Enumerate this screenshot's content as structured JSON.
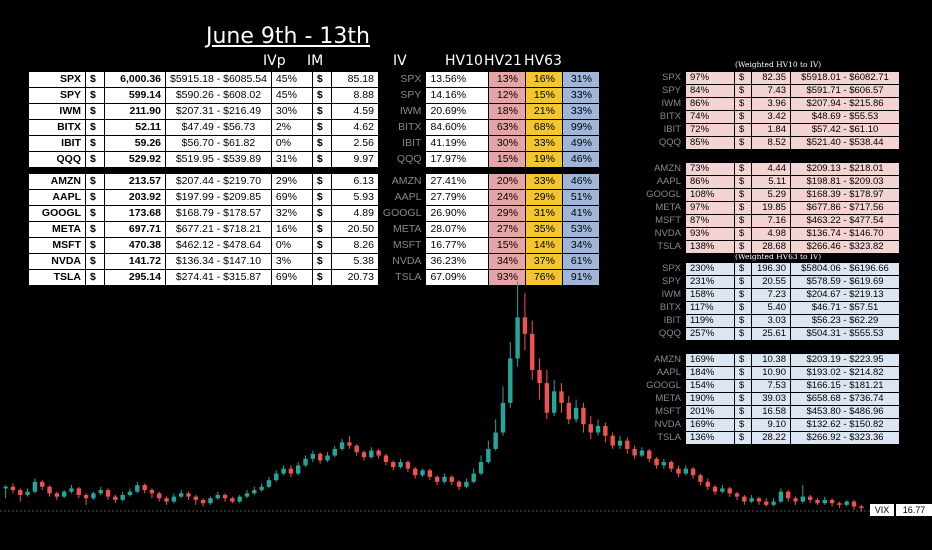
{
  "title": "June 9th - 13th",
  "headers": {
    "ivp": "IVp",
    "im": "IM",
    "iv": "IV",
    "hv10": "HV10",
    "hv21": "HV21",
    "hv63": "HV63"
  },
  "sub_top": "(Weighted HV10 to IV)",
  "sub_bot": "(Weighted HV63 to IV)",
  "dollar": "$",
  "rows": [
    {
      "t": "SPX",
      "p": "6,000.36",
      "rg": "$5915.18 - $6085.54",
      "ivp": "45%",
      "im": "85.18",
      "iv": "13.56%",
      "h10": "13%",
      "h21": "16%",
      "h63": "31%",
      "a_pct": "97%",
      "a_im": "82.35",
      "a_rg": "$5918.01 - $6082.71",
      "b_pct": "230%",
      "b_im": "196.30",
      "b_rg": "$5804.06 - $6196.66"
    },
    {
      "t": "SPY",
      "p": "599.14",
      "rg": "$590.26 - $608.02",
      "ivp": "45%",
      "im": "8.88",
      "iv": "14.16%",
      "h10": "12%",
      "h21": "15%",
      "h63": "33%",
      "a_pct": "84%",
      "a_im": "7.43",
      "a_rg": "$591.71 - $606.57",
      "b_pct": "231%",
      "b_im": "20.55",
      "b_rg": "$578.59 - $619.69"
    },
    {
      "t": "IWM",
      "p": "211.90",
      "rg": "$207.31 - $216.49",
      "ivp": "30%",
      "im": "4.59",
      "iv": "20.69%",
      "h10": "18%",
      "h21": "21%",
      "h63": "33%",
      "a_pct": "86%",
      "a_im": "3.96",
      "a_rg": "$207.94 - $215.86",
      "b_pct": "158%",
      "b_im": "7.23",
      "b_rg": "$204.67 - $219.13"
    },
    {
      "t": "BITX",
      "p": "52.11",
      "rg": "$47.49 - $56.73",
      "ivp": "2%",
      "im": "4.62",
      "iv": "84.60%",
      "h10": "63%",
      "h21": "68%",
      "h63": "99%",
      "a_pct": "74%",
      "a_im": "3.42",
      "a_rg": "$48.69 - $55.53",
      "b_pct": "117%",
      "b_im": "5.40",
      "b_rg": "$46.71 - $57.51"
    },
    {
      "t": "IBIT",
      "p": "59.26",
      "rg": "$56.70 - $61.82",
      "ivp": "0%",
      "im": "2.56",
      "iv": "41.19%",
      "h10": "30%",
      "h21": "33%",
      "h63": "49%",
      "a_pct": "72%",
      "a_im": "1.84",
      "a_rg": "$57.42 - $61.10",
      "b_pct": "119%",
      "b_im": "3.03",
      "b_rg": "$56.23 - $62.29"
    },
    {
      "t": "QQQ",
      "p": "529.92",
      "rg": "$519.95 - $539.89",
      "ivp": "31%",
      "im": "9.97",
      "iv": "17.97%",
      "h10": "15%",
      "h21": "19%",
      "h63": "46%",
      "a_pct": "85%",
      "a_im": "8.52",
      "a_rg": "$521.40 - $538.44",
      "b_pct": "257%",
      "b_im": "25.61",
      "b_rg": "$504.31 - $555.53"
    },
    {
      "t": "AMZN",
      "p": "213.57",
      "rg": "$207.44 - $219.70",
      "ivp": "29%",
      "im": "6.13",
      "iv": "27.41%",
      "h10": "20%",
      "h21": "33%",
      "h63": "46%",
      "a_pct": "73%",
      "a_im": "4.44",
      "a_rg": "$209.13 - $218.01",
      "b_pct": "169%",
      "b_im": "10.38",
      "b_rg": "$203.19 - $223.95"
    },
    {
      "t": "AAPL",
      "p": "203.92",
      "rg": "$197.99 - $209.85",
      "ivp": "69%",
      "im": "5.93",
      "iv": "27.79%",
      "h10": "24%",
      "h21": "29%",
      "h63": "51%",
      "a_pct": "86%",
      "a_im": "5.11",
      "a_rg": "$198.81 - $209.03",
      "b_pct": "184%",
      "b_im": "10.90",
      "b_rg": "$193.02 - $214.82"
    },
    {
      "t": "GOOGL",
      "p": "173.68",
      "rg": "$168.79 - $178.57",
      "ivp": "32%",
      "im": "4.89",
      "iv": "26.90%",
      "h10": "29%",
      "h21": "31%",
      "h63": "41%",
      "a_pct": "108%",
      "a_im": "5.29",
      "a_rg": "$168.39 - $178.97",
      "b_pct": "154%",
      "b_im": "7.53",
      "b_rg": "$166.15 - $181.21"
    },
    {
      "t": "META",
      "p": "697.71",
      "rg": "$677.21 - $718.21",
      "ivp": "16%",
      "im": "20.50",
      "iv": "28.07%",
      "h10": "27%",
      "h21": "35%",
      "h63": "53%",
      "a_pct": "97%",
      "a_im": "19.85",
      "a_rg": "$677.86 - $717.56",
      "b_pct": "190%",
      "b_im": "39.03",
      "b_rg": "$658.68 - $736.74"
    },
    {
      "t": "MSFT",
      "p": "470.38",
      "rg": "$462.12 - $478.64",
      "ivp": "0%",
      "im": "8.26",
      "iv": "16.77%",
      "h10": "15%",
      "h21": "14%",
      "h63": "34%",
      "a_pct": "87%",
      "a_im": "7.16",
      "a_rg": "$463.22 - $477.54",
      "b_pct": "201%",
      "b_im": "16.58",
      "b_rg": "$453.80 - $486.96"
    },
    {
      "t": "NVDA",
      "p": "141.72",
      "rg": "$136.34 - $147.10",
      "ivp": "3%",
      "im": "5.38",
      "iv": "36.23%",
      "h10": "34%",
      "h21": "37%",
      "h63": "61%",
      "a_pct": "93%",
      "a_im": "4.98",
      "a_rg": "$136.74 - $146.70",
      "b_pct": "169%",
      "b_im": "9.10",
      "b_rg": "$132.62 - $150.82"
    },
    {
      "t": "TSLA",
      "p": "295.14",
      "rg": "$274.41 - $315.87",
      "ivp": "69%",
      "im": "20.73",
      "iv": "67.09%",
      "h10": "93%",
      "h21": "76%",
      "h63": "91%",
      "a_pct": "138%",
      "a_im": "28.68",
      "a_rg": "$266.46 - $323.82",
      "b_pct": "136%",
      "b_im": "28.22",
      "b_rg": "$266.92 - $323.36"
    }
  ],
  "vix": {
    "label": "VIX",
    "value": "16.77"
  },
  "chart_data": {
    "type": "candlestick",
    "colors": {
      "up": "#26a69a",
      "down": "#ef5350"
    },
    "candles": [
      [
        46,
        47,
        40,
        48
      ],
      [
        47,
        45,
        43,
        49
      ],
      [
        45,
        42,
        38,
        46
      ],
      [
        42,
        44,
        41,
        46
      ],
      [
        44,
        50,
        43,
        52
      ],
      [
        50,
        47,
        45,
        51
      ],
      [
        47,
        43,
        41,
        48
      ],
      [
        43,
        41,
        39,
        44
      ],
      [
        41,
        44,
        40,
        45
      ],
      [
        44,
        46,
        43,
        48
      ],
      [
        46,
        42,
        40,
        47
      ],
      [
        42,
        40,
        36,
        43
      ],
      [
        40,
        43,
        39,
        44
      ],
      [
        43,
        45,
        42,
        47
      ],
      [
        45,
        41,
        39,
        46
      ],
      [
        41,
        39,
        37,
        42
      ],
      [
        39,
        42,
        38,
        44
      ],
      [
        42,
        44,
        41,
        46
      ],
      [
        44,
        48,
        43,
        50
      ],
      [
        48,
        45,
        43,
        49
      ],
      [
        45,
        43,
        40,
        46
      ],
      [
        43,
        40,
        38,
        44
      ],
      [
        40,
        38,
        36,
        41
      ],
      [
        38,
        41,
        37,
        43
      ],
      [
        41,
        43,
        40,
        45
      ],
      [
        43,
        41,
        39,
        44
      ],
      [
        41,
        39,
        36,
        42
      ],
      [
        39,
        37,
        35,
        40
      ],
      [
        37,
        40,
        36,
        41
      ],
      [
        40,
        42,
        39,
        44
      ],
      [
        42,
        40,
        38,
        43
      ],
      [
        40,
        38,
        37,
        41
      ],
      [
        38,
        41,
        37,
        42
      ],
      [
        41,
        43,
        40,
        45
      ],
      [
        43,
        45,
        42,
        47
      ],
      [
        45,
        47,
        44,
        49
      ],
      [
        47,
        51,
        46,
        53
      ],
      [
        51,
        55,
        50,
        57
      ],
      [
        55,
        58,
        54,
        60
      ],
      [
        58,
        55,
        53,
        60
      ],
      [
        55,
        60,
        54,
        62
      ],
      [
        60,
        64,
        59,
        66
      ],
      [
        64,
        67,
        62,
        69
      ],
      [
        67,
        63,
        61,
        68
      ],
      [
        63,
        66,
        62,
        68
      ],
      [
        66,
        70,
        65,
        72
      ],
      [
        70,
        74,
        69,
        76
      ],
      [
        74,
        72,
        70,
        78
      ],
      [
        72,
        68,
        66,
        73
      ],
      [
        68,
        65,
        63,
        69
      ],
      [
        65,
        69,
        64,
        71
      ],
      [
        69,
        66,
        64,
        70
      ],
      [
        66,
        62,
        60,
        67
      ],
      [
        62,
        59,
        57,
        63
      ],
      [
        59,
        62,
        58,
        64
      ],
      [
        62,
        58,
        56,
        63
      ],
      [
        58,
        54,
        52,
        59
      ],
      [
        54,
        57,
        53,
        58
      ],
      [
        57,
        53,
        51,
        58
      ],
      [
        53,
        50,
        48,
        54
      ],
      [
        50,
        53,
        49,
        55
      ],
      [
        53,
        50,
        48,
        54
      ],
      [
        50,
        47,
        45,
        51
      ],
      [
        47,
        50,
        46,
        52
      ],
      [
        50,
        55,
        49,
        58
      ],
      [
        55,
        62,
        54,
        66
      ],
      [
        62,
        70,
        61,
        75
      ],
      [
        70,
        80,
        69,
        88
      ],
      [
        80,
        98,
        78,
        108
      ],
      [
        98,
        125,
        95,
        135
      ],
      [
        125,
        150,
        120,
        172
      ],
      [
        150,
        140,
        130,
        165
      ],
      [
        140,
        118,
        112,
        148
      ],
      [
        118,
        110,
        100,
        125
      ],
      [
        110,
        92,
        88,
        118
      ],
      [
        92,
        105,
        90,
        112
      ],
      [
        105,
        98,
        92,
        110
      ],
      [
        98,
        88,
        85,
        102
      ],
      [
        88,
        95,
        86,
        100
      ],
      [
        95,
        85,
        80,
        98
      ],
      [
        85,
        80,
        76,
        90
      ],
      [
        80,
        84,
        78,
        88
      ],
      [
        84,
        78,
        74,
        86
      ],
      [
        78,
        72,
        70,
        80
      ],
      [
        72,
        75,
        70,
        78
      ],
      [
        75,
        70,
        67,
        77
      ],
      [
        70,
        66,
        64,
        72
      ],
      [
        66,
        69,
        65,
        71
      ],
      [
        69,
        64,
        62,
        70
      ],
      [
        64,
        60,
        58,
        65
      ],
      [
        60,
        62,
        58,
        64
      ],
      [
        62,
        58,
        56,
        63
      ],
      [
        58,
        55,
        53,
        60
      ],
      [
        55,
        58,
        54,
        60
      ],
      [
        58,
        54,
        52,
        59
      ],
      [
        54,
        50,
        48,
        55
      ],
      [
        50,
        47,
        45,
        52
      ],
      [
        47,
        44,
        42,
        48
      ],
      [
        44,
        46,
        43,
        48
      ],
      [
        46,
        43,
        41,
        47
      ],
      [
        43,
        41,
        39,
        44
      ],
      [
        41,
        38,
        36,
        42
      ],
      [
        38,
        40,
        37,
        42
      ],
      [
        40,
        38,
        36,
        41
      ],
      [
        38,
        36,
        35,
        40
      ],
      [
        36,
        38,
        35,
        40
      ],
      [
        38,
        44,
        37,
        46
      ],
      [
        44,
        40,
        38,
        45
      ],
      [
        40,
        38,
        36,
        41
      ],
      [
        38,
        41,
        37,
        48
      ],
      [
        41,
        39,
        37,
        42
      ],
      [
        39,
        37,
        36,
        40
      ],
      [
        37,
        39,
        36,
        41
      ],
      [
        39,
        37,
        35,
        40
      ],
      [
        37,
        36,
        34,
        38
      ],
      [
        36,
        38,
        35,
        39
      ],
      [
        38,
        35,
        33,
        39
      ],
      [
        35,
        34,
        32,
        36
      ]
    ],
    "ylim": [
      28,
      180
    ],
    "last_label": "16.77"
  }
}
